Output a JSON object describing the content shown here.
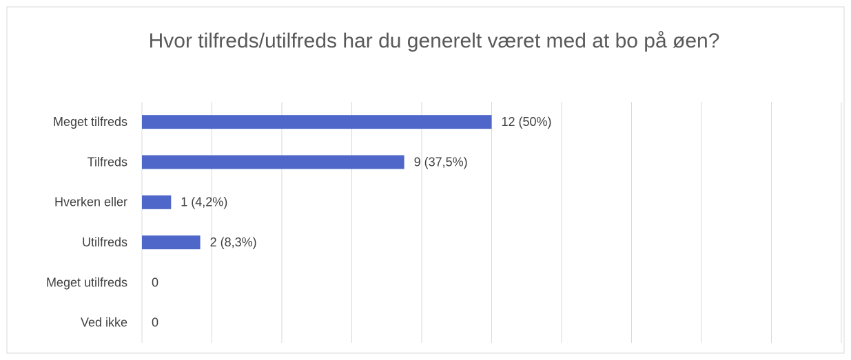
{
  "chart_data": {
    "type": "bar",
    "orientation": "horizontal",
    "title": "Hvor tilfreds/utilfreds har du generelt været med at bo på øen?",
    "categories": [
      "Meget tilfreds",
      "Tilfreds",
      "Hverken eller",
      "Utilfreds",
      "Meget utilfreds",
      "Ved ikke"
    ],
    "values": [
      12,
      9,
      1,
      2,
      0,
      0
    ],
    "value_labels": [
      "12 (50%)",
      "9 (37,5%)",
      "1 (4,2%)",
      "2 (8,3%)",
      "0",
      "0"
    ],
    "color": "#4e67c8",
    "xlim": [
      0,
      24
    ],
    "xticks": [
      0,
      2.4,
      4.8,
      7.2,
      9.6,
      12,
      14.4,
      16.8,
      19.2,
      21.6,
      24
    ],
    "grid": true
  }
}
